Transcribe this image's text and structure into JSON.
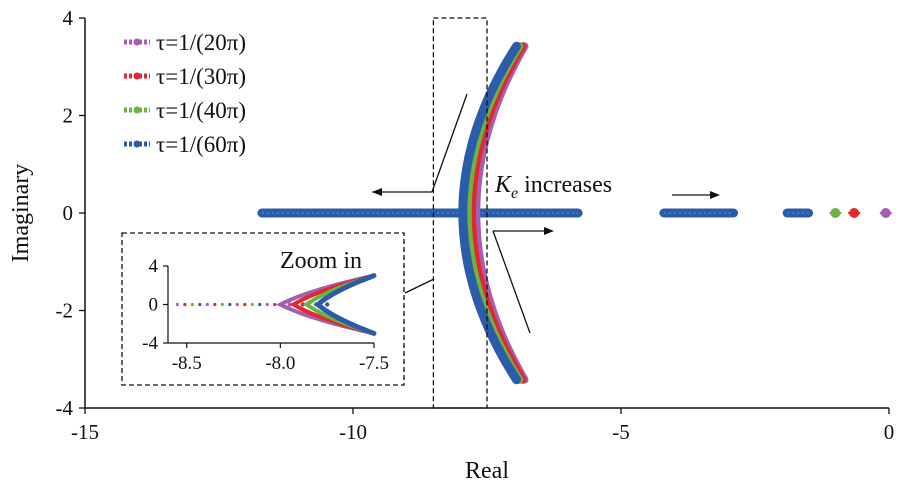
{
  "chart_data": {
    "type": "scatter",
    "xlabel": "Real",
    "ylabel": "Imaginary",
    "xlim": [
      -15,
      0
    ],
    "ylim": [
      -4,
      4
    ],
    "x_ticks": [
      "-15",
      "-10",
      "-5",
      "0"
    ],
    "y_ticks": [
      "4",
      "2",
      "0",
      "-2",
      "-4"
    ],
    "legend_position": "top-left",
    "series": [
      {
        "name": "τ=1/(20π)",
        "color": "#a65fb0",
        "real_pole": -0.06,
        "branch_vertex": -7.7,
        "branch_tip": -6.8
      },
      {
        "name": "τ=1/(30π)",
        "color": "#e0282e",
        "real_pole": -0.65,
        "branch_vertex": -7.78,
        "branch_tip": -6.84
      },
      {
        "name": "τ=1/(40π)",
        "color": "#6cb33f",
        "real_pole": -1.0,
        "branch_vertex": -7.86,
        "branch_tip": -6.9
      },
      {
        "name": "τ=1/(60π)",
        "color": "#2a5caa",
        "real_pole": -1.8,
        "branch_vertex": -7.95,
        "branch_tip": -6.95
      }
    ],
    "real_axis_segments": [
      [
        -11.7,
        -5.8
      ],
      [
        -4.2,
        -2.9
      ],
      [
        -1.9,
        -1.5
      ]
    ],
    "annotations": {
      "gain_label_main": "K",
      "gain_label_sub": "e",
      "gain_label_rest": " increases",
      "zoom_label": "Zoom in"
    },
    "zoom_window": {
      "xlim": [
        -8.5,
        -7.5
      ],
      "ylim": [
        -4,
        4
      ]
    },
    "inset": {
      "x_ticks": [
        "-8.5",
        "-8.0",
        "-7.5"
      ],
      "y_ticks": [
        "4",
        "0",
        "-4"
      ]
    }
  }
}
